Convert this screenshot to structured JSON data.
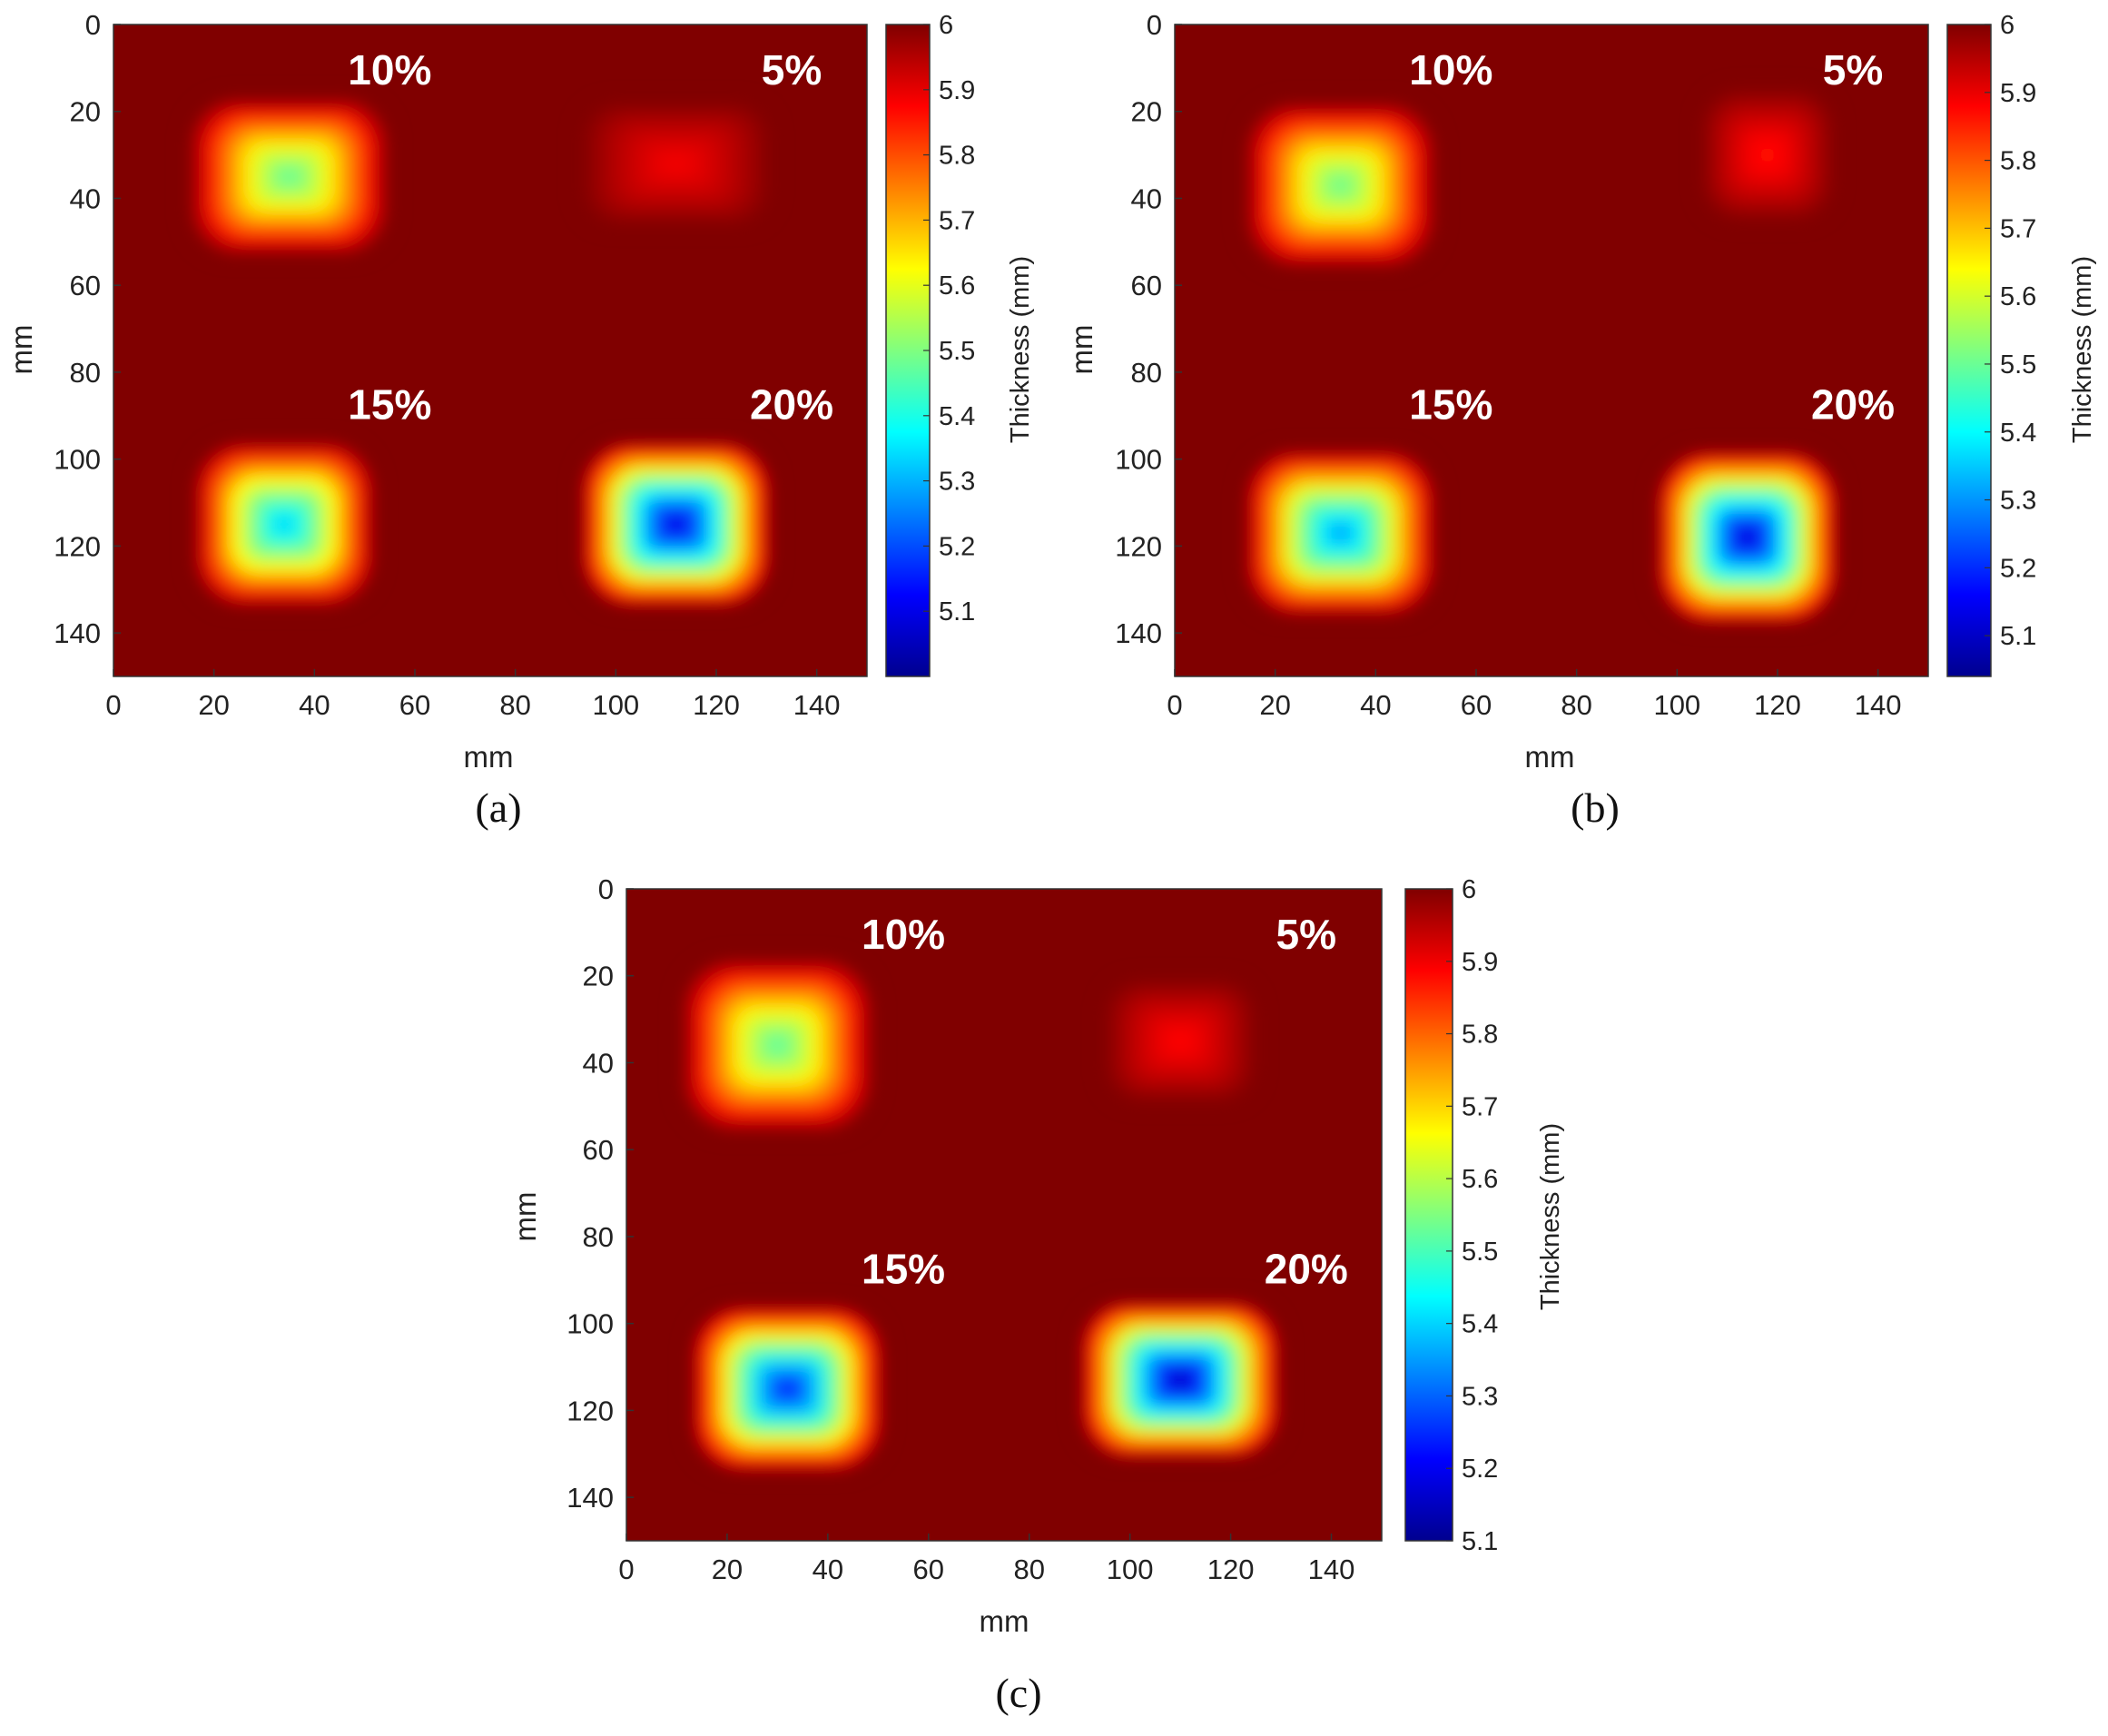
{
  "chart_data": [
    {
      "type": "heatmap",
      "panel": "(a)",
      "xlabel": "mm",
      "ylabel": "mm",
      "xlim": [
        0,
        150
      ],
      "ylim": [
        0,
        150
      ],
      "x_ticks": [
        0,
        20,
        40,
        60,
        80,
        100,
        120,
        140
      ],
      "y_ticks": [
        0,
        20,
        40,
        60,
        80,
        100,
        120,
        140
      ],
      "y_axis_reversed": true,
      "colorbar": {
        "label": "Thickness (mm)",
        "range": [
          5.0,
          6.0
        ],
        "ticks": [
          "5.1",
          "5.2",
          "5.3",
          "5.4",
          "5.5",
          "5.6",
          "5.7",
          "5.8",
          "5.9",
          "6"
        ],
        "colormap": "jet"
      },
      "baseline_thickness": 6.0,
      "annotations": [
        "10%",
        "5%",
        "15%",
        "20%"
      ],
      "defects": [
        {
          "label": "10%",
          "center": [
            35,
            35
          ],
          "size": [
            42,
            38
          ],
          "min_thickness": 5.45
        },
        {
          "label": "5%",
          "center": [
            112,
            32
          ],
          "size": [
            40,
            30
          ],
          "min_thickness": 5.88
        },
        {
          "label": "15%",
          "center": [
            34,
            115
          ],
          "size": [
            38,
            40
          ],
          "min_thickness": 5.3
        },
        {
          "label": "20%",
          "center": [
            112,
            115
          ],
          "size": [
            40,
            40
          ],
          "min_thickness": 5.05
        }
      ]
    },
    {
      "type": "heatmap",
      "panel": "(b)",
      "xlabel": "mm",
      "ylabel": "mm",
      "xlim": [
        0,
        150
      ],
      "ylim": [
        0,
        150
      ],
      "x_ticks": [
        0,
        20,
        40,
        60,
        80,
        100,
        120,
        140
      ],
      "y_ticks": [
        0,
        20,
        40,
        60,
        80,
        100,
        120,
        140
      ],
      "y_axis_reversed": true,
      "colorbar": {
        "label": "Thickness (mm)",
        "range": [
          5.04,
          6.0
        ],
        "ticks": [
          "5.1",
          "5.2",
          "5.3",
          "5.4",
          "5.5",
          "5.6",
          "5.7",
          "5.8",
          "5.9",
          "6"
        ],
        "colormap": "jet"
      },
      "baseline_thickness": 6.0,
      "annotations": [
        "10%",
        "5%",
        "15%",
        "20%"
      ],
      "defects": [
        {
          "label": "10%",
          "center": [
            33,
            37
          ],
          "size": [
            40,
            40
          ],
          "min_thickness": 5.48
        },
        {
          "label": "5%",
          "center": [
            118,
            30
          ],
          "size": [
            28,
            32
          ],
          "min_thickness": 5.86
        },
        {
          "label": "15%",
          "center": [
            33,
            117
          ],
          "size": [
            40,
            40
          ],
          "min_thickness": 5.28
        },
        {
          "label": "20%",
          "center": [
            114,
            118
          ],
          "size": [
            38,
            42
          ],
          "min_thickness": 5.08
        }
      ]
    },
    {
      "type": "heatmap",
      "panel": "(c)",
      "xlabel": "mm",
      "ylabel": "mm",
      "xlim": [
        0,
        150
      ],
      "ylim": [
        0,
        150
      ],
      "x_ticks": [
        0,
        20,
        40,
        60,
        80,
        100,
        120,
        140
      ],
      "y_ticks": [
        0,
        20,
        40,
        60,
        80,
        100,
        120,
        140
      ],
      "y_axis_reversed": true,
      "colorbar": {
        "label": "Thickness (mm)",
        "range": [
          5.1,
          6.0
        ],
        "ticks": [
          "5.1",
          "5.2",
          "5.3",
          "5.4",
          "5.5",
          "5.6",
          "5.7",
          "5.8",
          "5.9",
          "6"
        ],
        "colormap": "jet"
      },
      "baseline_thickness": 6.0,
      "annotations": [
        "10%",
        "5%",
        "15%",
        "20%"
      ],
      "defects": [
        {
          "label": "10%",
          "center": [
            30,
            36
          ],
          "size": [
            40,
            42
          ],
          "min_thickness": 5.5
        },
        {
          "label": "5%",
          "center": [
            110,
            35
          ],
          "size": [
            32,
            30
          ],
          "min_thickness": 5.88
        },
        {
          "label": "15%",
          "center": [
            32,
            115
          ],
          "size": [
            40,
            40
          ],
          "min_thickness": 5.2
        },
        {
          "label": "20%",
          "center": [
            110,
            113
          ],
          "size": [
            42,
            38
          ],
          "min_thickness": 5.12
        }
      ]
    }
  ]
}
